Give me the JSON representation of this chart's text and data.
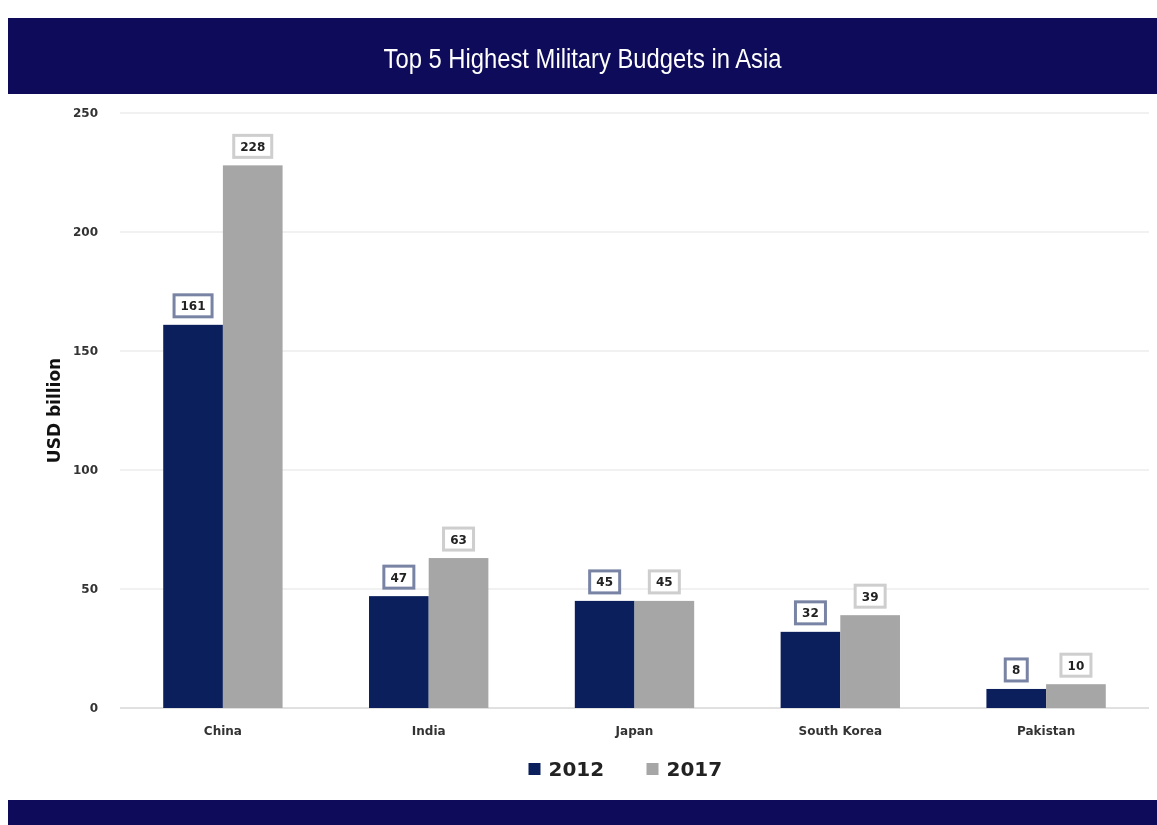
{
  "chart_data": {
    "type": "bar",
    "title": "Top 5 Highest Military Budgets in Asia",
    "ylabel": "USD billion",
    "categories": [
      "China",
      "India",
      "Japan",
      "South Korea",
      "Pakistan"
    ],
    "series": [
      {
        "name": "2012",
        "color": "#0b1f5c",
        "values": [
          161,
          47,
          45,
          32,
          8
        ]
      },
      {
        "name": "2017",
        "color": "#a6a6a6",
        "values": [
          228,
          63,
          45,
          39,
          10
        ]
      }
    ],
    "ylim": [
      0,
      250
    ],
    "yticks": [
      0,
      50,
      100,
      150,
      200,
      250
    ],
    "grid": "y",
    "legend": "bottom",
    "data_labels": true
  }
}
